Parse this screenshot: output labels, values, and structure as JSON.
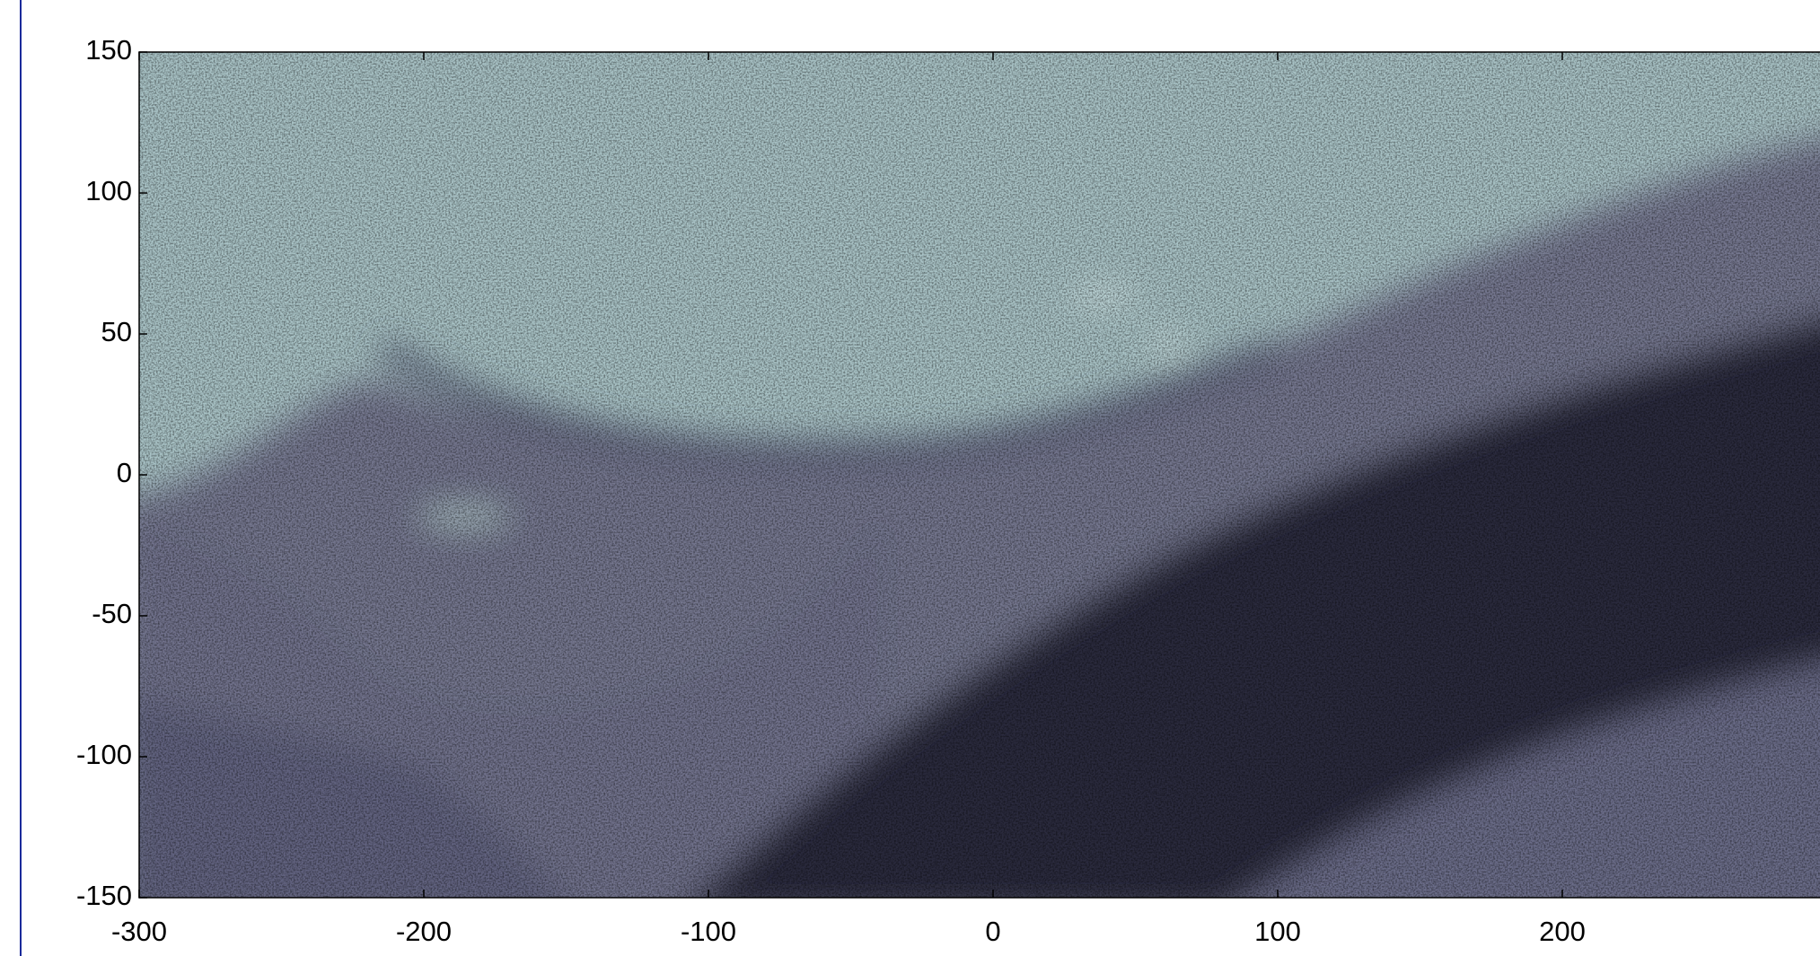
{
  "chart_data": {
    "type": "image",
    "xlim": [
      -300,
      300
    ],
    "ylim": [
      -150,
      150
    ],
    "xticks": [
      -300,
      -200,
      -100,
      0,
      100,
      200
    ],
    "yticks": [
      -150,
      -100,
      -50,
      0,
      50,
      100,
      150
    ]
  }
}
